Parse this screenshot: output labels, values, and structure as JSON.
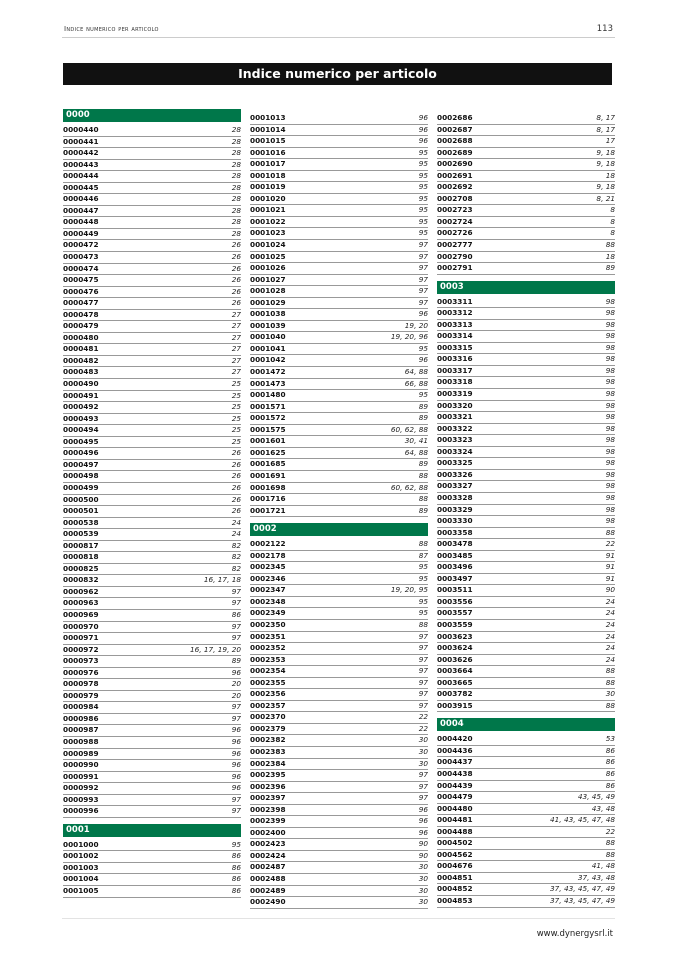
{
  "header": {
    "running_title": "Indice numerico per articolo",
    "page_number": "113"
  },
  "title": "Indice numerico per articolo",
  "footer": {
    "website": "www.dynergysrl.it"
  },
  "colors": {
    "section": "#00774a",
    "title_bar": "#111111"
  },
  "columns": [
    [
      {
        "section": "0000",
        "items": [
          [
            "0000440",
            "28"
          ],
          [
            "0000441",
            "28"
          ],
          [
            "0000442",
            "28"
          ],
          [
            "0000443",
            "28"
          ],
          [
            "0000444",
            "28"
          ],
          [
            "0000445",
            "28"
          ],
          [
            "0000446",
            "28"
          ],
          [
            "0000447",
            "28"
          ],
          [
            "0000448",
            "28"
          ],
          [
            "0000449",
            "28"
          ],
          [
            "0000472",
            "26"
          ],
          [
            "0000473",
            "26"
          ],
          [
            "0000474",
            "26"
          ],
          [
            "0000475",
            "26"
          ],
          [
            "0000476",
            "26"
          ],
          [
            "0000477",
            "26"
          ],
          [
            "0000478",
            "27"
          ],
          [
            "0000479",
            "27"
          ],
          [
            "0000480",
            "27"
          ],
          [
            "0000481",
            "27"
          ],
          [
            "0000482",
            "27"
          ],
          [
            "0000483",
            "27"
          ],
          [
            "0000490",
            "25"
          ],
          [
            "0000491",
            "25"
          ],
          [
            "0000492",
            "25"
          ],
          [
            "0000493",
            "25"
          ],
          [
            "0000494",
            "25"
          ],
          [
            "0000495",
            "25"
          ],
          [
            "0000496",
            "26"
          ],
          [
            "0000497",
            "26"
          ],
          [
            "0000498",
            "26"
          ],
          [
            "0000499",
            "26"
          ],
          [
            "0000500",
            "26"
          ],
          [
            "0000501",
            "26"
          ],
          [
            "0000538",
            "24"
          ],
          [
            "0000539",
            "24"
          ],
          [
            "0000817",
            "82"
          ],
          [
            "0000818",
            "82"
          ],
          [
            "0000825",
            "82"
          ],
          [
            "0000832",
            "16, 17, 18"
          ],
          [
            "0000962",
            "97"
          ],
          [
            "0000963",
            "97"
          ],
          [
            "0000969",
            "86"
          ],
          [
            "0000970",
            "97"
          ],
          [
            "0000971",
            "97"
          ],
          [
            "0000972",
            "16, 17, 19, 20"
          ],
          [
            "0000973",
            "89"
          ],
          [
            "0000976",
            "96"
          ],
          [
            "0000978",
            "20"
          ],
          [
            "0000979",
            "20"
          ],
          [
            "0000984",
            "97"
          ],
          [
            "0000986",
            "97"
          ],
          [
            "0000987",
            "96"
          ],
          [
            "0000988",
            "96"
          ],
          [
            "0000989",
            "96"
          ],
          [
            "0000990",
            "96"
          ],
          [
            "0000991",
            "96"
          ],
          [
            "0000992",
            "96"
          ],
          [
            "0000993",
            "97"
          ],
          [
            "0000996",
            "97"
          ]
        ]
      },
      {
        "section": "0001",
        "items": [
          [
            "0001000",
            "95"
          ],
          [
            "0001002",
            "86"
          ],
          [
            "0001003",
            "86"
          ],
          [
            "0001004",
            "86"
          ],
          [
            "0001005",
            "86"
          ]
        ]
      }
    ],
    [
      {
        "section": null,
        "items": [
          [
            "0001013",
            "96"
          ],
          [
            "0001014",
            "96"
          ],
          [
            "0001015",
            "96"
          ],
          [
            "0001016",
            "95"
          ],
          [
            "0001017",
            "95"
          ],
          [
            "0001018",
            "95"
          ],
          [
            "0001019",
            "95"
          ],
          [
            "0001020",
            "95"
          ],
          [
            "0001021",
            "95"
          ],
          [
            "0001022",
            "95"
          ],
          [
            "0001023",
            "95"
          ],
          [
            "0001024",
            "97"
          ],
          [
            "0001025",
            "97"
          ],
          [
            "0001026",
            "97"
          ],
          [
            "0001027",
            "97"
          ],
          [
            "0001028",
            "97"
          ],
          [
            "0001029",
            "97"
          ],
          [
            "0001038",
            "96"
          ],
          [
            "0001039",
            "19, 20"
          ],
          [
            "0001040",
            "19, 20, 96"
          ],
          [
            "0001041",
            "95"
          ],
          [
            "0001042",
            "96"
          ],
          [
            "0001472",
            "64, 88"
          ],
          [
            "0001473",
            "66, 88"
          ],
          [
            "0001480",
            "95"
          ],
          [
            "0001571",
            "89"
          ],
          [
            "0001572",
            "89"
          ],
          [
            "0001575",
            "60, 62, 88"
          ],
          [
            "0001601",
            "30, 41"
          ],
          [
            "0001625",
            "64, 88"
          ],
          [
            "0001685",
            "89"
          ],
          [
            "0001691",
            "88"
          ],
          [
            "0001698",
            "60, 62, 88"
          ],
          [
            "0001716",
            "88"
          ],
          [
            "0001721",
            "89"
          ]
        ]
      },
      {
        "section": "0002",
        "items": [
          [
            "0002122",
            "88"
          ],
          [
            "0002178",
            "87"
          ],
          [
            "0002345",
            "95"
          ],
          [
            "0002346",
            "95"
          ],
          [
            "0002347",
            "19, 20, 95"
          ],
          [
            "0002348",
            "95"
          ],
          [
            "0002349",
            "95"
          ],
          [
            "0002350",
            "88"
          ],
          [
            "0002351",
            "97"
          ],
          [
            "0002352",
            "97"
          ],
          [
            "0002353",
            "97"
          ],
          [
            "0002354",
            "97"
          ],
          [
            "0002355",
            "97"
          ],
          [
            "0002356",
            "97"
          ],
          [
            "0002357",
            "97"
          ],
          [
            "0002370",
            "22"
          ],
          [
            "0002379",
            "22"
          ],
          [
            "0002382",
            "30"
          ],
          [
            "0002383",
            "30"
          ],
          [
            "0002384",
            "30"
          ],
          [
            "0002395",
            "97"
          ],
          [
            "0002396",
            "97"
          ],
          [
            "0002397",
            "97"
          ],
          [
            "0002398",
            "96"
          ],
          [
            "0002399",
            "96"
          ],
          [
            "0002400",
            "96"
          ],
          [
            "0002423",
            "90"
          ],
          [
            "0002424",
            "90"
          ],
          [
            "0002487",
            "30"
          ],
          [
            "0002488",
            "30"
          ],
          [
            "0002489",
            "30"
          ],
          [
            "0002490",
            "30"
          ]
        ]
      }
    ],
    [
      {
        "section": null,
        "items": [
          [
            "0002686",
            "8, 17"
          ],
          [
            "0002687",
            "8, 17"
          ],
          [
            "0002688",
            "17"
          ],
          [
            "0002689",
            "9, 18"
          ],
          [
            "0002690",
            "9, 18"
          ],
          [
            "0002691",
            "18"
          ],
          [
            "0002692",
            "9, 18"
          ],
          [
            "0002708",
            "8, 21"
          ],
          [
            "0002723",
            "8"
          ],
          [
            "0002724",
            "8"
          ],
          [
            "0002726",
            "8"
          ],
          [
            "0002777",
            "88"
          ],
          [
            "0002790",
            "18"
          ],
          [
            "0002791",
            "89"
          ]
        ]
      },
      {
        "section": "0003",
        "items": [
          [
            "0003311",
            "98"
          ],
          [
            "0003312",
            "98"
          ],
          [
            "0003313",
            "98"
          ],
          [
            "0003314",
            "98"
          ],
          [
            "0003315",
            "98"
          ],
          [
            "0003316",
            "98"
          ],
          [
            "0003317",
            "98"
          ],
          [
            "0003318",
            "98"
          ],
          [
            "0003319",
            "98"
          ],
          [
            "0003320",
            "98"
          ],
          [
            "0003321",
            "98"
          ],
          [
            "0003322",
            "98"
          ],
          [
            "0003323",
            "98"
          ],
          [
            "0003324",
            "98"
          ],
          [
            "0003325",
            "98"
          ],
          [
            "0003326",
            "98"
          ],
          [
            "0003327",
            "98"
          ],
          [
            "0003328",
            "98"
          ],
          [
            "0003329",
            "98"
          ],
          [
            "0003330",
            "98"
          ],
          [
            "0003358",
            "88"
          ],
          [
            "0003478",
            "22"
          ],
          [
            "0003485",
            "91"
          ],
          [
            "0003496",
            "91"
          ],
          [
            "0003497",
            "91"
          ],
          [
            "0003511",
            "90"
          ],
          [
            "0003556",
            "24"
          ],
          [
            "0003557",
            "24"
          ],
          [
            "0003559",
            "24"
          ],
          [
            "0003623",
            "24"
          ],
          [
            "0003624",
            "24"
          ],
          [
            "0003626",
            "24"
          ],
          [
            "0003664",
            "88"
          ],
          [
            "0003665",
            "88"
          ],
          [
            "0003782",
            "30"
          ],
          [
            "0003915",
            "88"
          ]
        ]
      },
      {
        "section": "0004",
        "items": [
          [
            "0004420",
            "53"
          ],
          [
            "0004436",
            "86"
          ],
          [
            "0004437",
            "86"
          ],
          [
            "0004438",
            "86"
          ],
          [
            "0004439",
            "86"
          ],
          [
            "0004479",
            "43, 45, 49"
          ],
          [
            "0004480",
            "43, 48"
          ],
          [
            "0004481",
            "41, 43, 45, 47, 48"
          ],
          [
            "0004488",
            "22"
          ],
          [
            "0004502",
            "88"
          ],
          [
            "0004562",
            "88"
          ],
          [
            "0004676",
            "41, 48"
          ],
          [
            "0004851",
            "37, 43, 48"
          ],
          [
            "0004852",
            "37, 43, 45, 47, 49"
          ],
          [
            "0004853",
            "37, 43, 45, 47, 49"
          ]
        ]
      }
    ]
  ]
}
